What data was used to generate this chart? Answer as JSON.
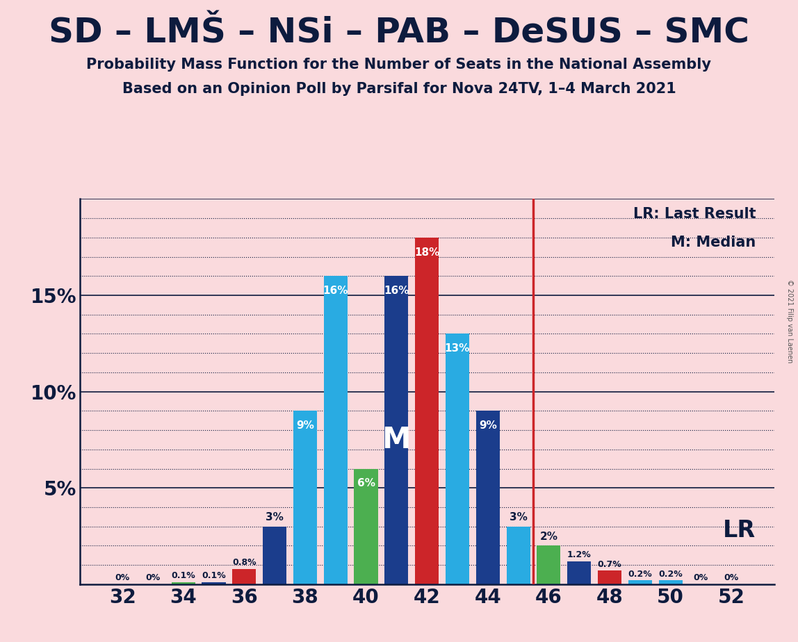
{
  "title": "SD – LMŠ – NSi – PAB – DeSUS – SMC",
  "subtitle1": "Probability Mass Function for the Number of Seats in the National Assembly",
  "subtitle2": "Based on an Opinion Poll by Parsifal for Nova 24TV, 1–4 March 2021",
  "copyright": "© 2021 Filip van Laenen",
  "background_color": "#FADADD",
  "bar_data": [
    {
      "seat": 32,
      "prob": 0.0,
      "color": "#29ABE2",
      "label": "0%"
    },
    {
      "seat": 33,
      "prob": 0.0,
      "color": "#29ABE2",
      "label": "0%"
    },
    {
      "seat": 34,
      "prob": 0.1,
      "color": "#4CAF50",
      "label": "0.1%"
    },
    {
      "seat": 35,
      "prob": 0.1,
      "color": "#1B3D8C",
      "label": "0.1%"
    },
    {
      "seat": 36,
      "prob": 0.8,
      "color": "#CC2529",
      "label": "0.8%"
    },
    {
      "seat": 37,
      "prob": 3.0,
      "color": "#1B3D8C",
      "label": "3%"
    },
    {
      "seat": 38,
      "prob": 9.0,
      "color": "#29ABE2",
      "label": "9%"
    },
    {
      "seat": 39,
      "prob": 16.0,
      "color": "#29ABE2",
      "label": "16%"
    },
    {
      "seat": 40,
      "prob": 6.0,
      "color": "#4CAF50",
      "label": "6%"
    },
    {
      "seat": 41,
      "prob": 16.0,
      "color": "#1B3D8C",
      "label": "16%",
      "median": true
    },
    {
      "seat": 42,
      "prob": 18.0,
      "color": "#CC2529",
      "label": "18%"
    },
    {
      "seat": 43,
      "prob": 13.0,
      "color": "#29ABE2",
      "label": "13%"
    },
    {
      "seat": 44,
      "prob": 9.0,
      "color": "#1B3D8C",
      "label": "9%"
    },
    {
      "seat": 45,
      "prob": 3.0,
      "color": "#29ABE2",
      "label": "3%"
    },
    {
      "seat": 46,
      "prob": 2.0,
      "color": "#4CAF50",
      "label": "2%"
    },
    {
      "seat": 47,
      "prob": 1.2,
      "color": "#1B3D8C",
      "label": "1.2%"
    },
    {
      "seat": 48,
      "prob": 0.7,
      "color": "#CC2529",
      "label": "0.7%"
    },
    {
      "seat": 49,
      "prob": 0.2,
      "color": "#29ABE2",
      "label": "0.2%"
    },
    {
      "seat": 50,
      "prob": 0.2,
      "color": "#29ABE2",
      "label": "0.2%"
    },
    {
      "seat": 51,
      "prob": 0.0,
      "color": "#29ABE2",
      "label": "0%"
    },
    {
      "seat": 52,
      "prob": 0.0,
      "color": "#29ABE2",
      "label": "0%"
    }
  ],
  "median_seat": 41,
  "last_result_x": 45.5,
  "bar_width": 0.78,
  "xlim": [
    30.6,
    53.4
  ],
  "ylim": [
    0,
    20
  ],
  "xticks": [
    32,
    34,
    36,
    38,
    40,
    42,
    44,
    46,
    48,
    50,
    52
  ],
  "ytick_major": [
    0,
    5,
    10,
    15,
    20
  ],
  "ytick_minor": [
    1,
    2,
    3,
    4,
    6,
    7,
    8,
    9,
    11,
    12,
    13,
    14,
    16,
    17,
    18,
    19
  ],
  "ytick_labels": [
    "",
    "5%",
    "10%",
    "15%",
    ""
  ],
  "lr_line_color": "#CC2529",
  "text_color": "#0d1b3e",
  "title_fontsize": 36,
  "subtitle_fontsize": 15,
  "tick_fontsize": 20,
  "label_fontsize": 11,
  "m_fontsize": 30,
  "lr_fontsize": 24,
  "legend_fontsize": 15
}
